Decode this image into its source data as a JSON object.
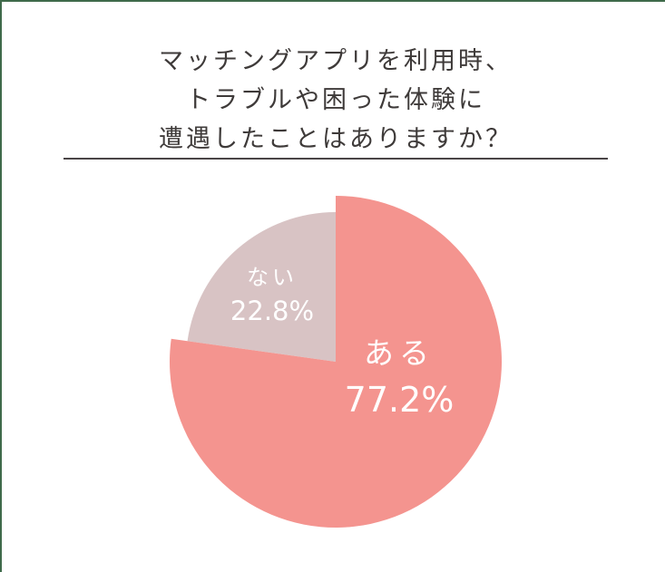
{
  "title": {
    "lines": [
      "マッチングアプリを利用時、",
      "トラブルや困った体験に",
      "遭遇したことはありますか？"
    ]
  },
  "colors": {
    "aru": "#f4948f",
    "nai": "#d8c3c4",
    "text": "#3e3a39",
    "frame": "#3f6a4a"
  },
  "chart_data": {
    "type": "pie",
    "title": "マッチングアプリを利用時、トラブルや困った体験に遭遇したことはありますか？",
    "categories": [
      "ある",
      "ない"
    ],
    "values": [
      77.2,
      22.8
    ],
    "unit": "%",
    "start_angle": "12 o'clock, clockwise",
    "labels": [
      {
        "name": "ある",
        "value": "77.2%"
      },
      {
        "name": "ない",
        "value": "22.8%"
      }
    ],
    "legend": "none (labels inside slices)",
    "note": "ある slice drawn with larger radius (exploded/emphasized)"
  },
  "slices": {
    "aru": {
      "name": "ある",
      "value": "77.2%"
    },
    "nai": {
      "name": "ない",
      "value": "22.8%"
    }
  }
}
